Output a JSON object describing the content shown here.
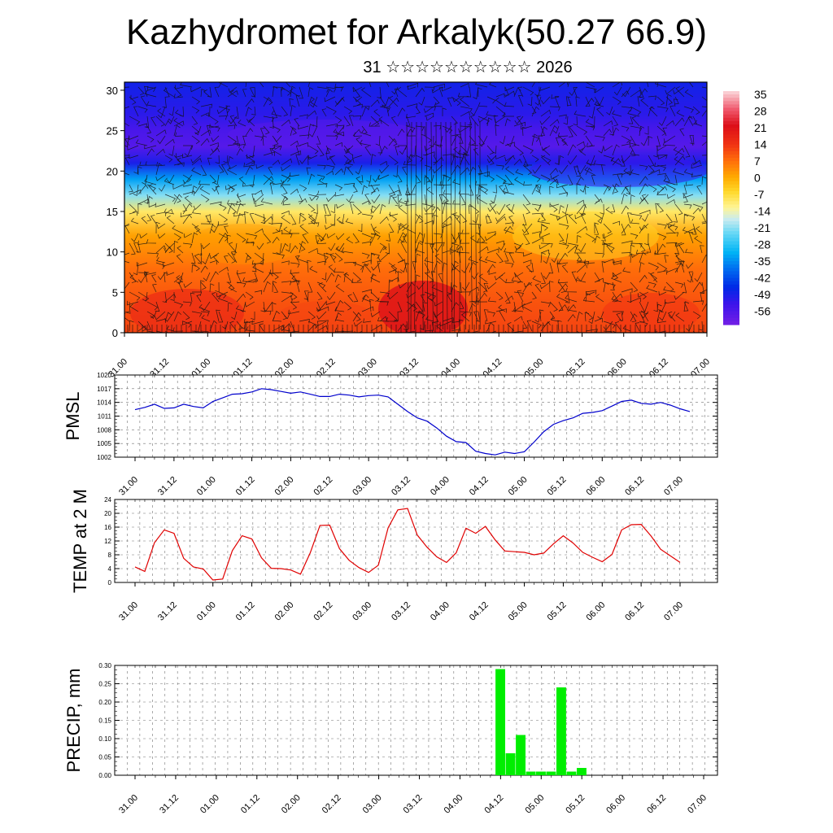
{
  "header": {
    "title": "Kazhydromet for Arkalyk(50.27 66.9)",
    "subtitle": "31 ☆☆☆☆☆☆☆☆☆☆ 2026"
  },
  "colors": {
    "pmsl_line": "#0000cc",
    "temp_line": "#e00000",
    "precip_bar": "#00ee00",
    "wind_barb": "#111111",
    "grid": "#000000"
  },
  "chart_data": [
    {
      "id": "cross_section",
      "type": "heatmap",
      "title": "",
      "xlabel": "",
      "ylabel": "",
      "x_ticks": [
        "31.00",
        "31.12",
        "01.00",
        "01.12",
        "02.00",
        "02.12",
        "03.00",
        "03.12",
        "04.00",
        "04.12",
        "05.00",
        "05.12",
        "06.00",
        "06.12",
        "07.00"
      ],
      "y_ticks": [
        0,
        5,
        10,
        15,
        20,
        25,
        30
      ],
      "ylim": [
        0,
        31
      ],
      "colorbar_labels": [
        "35",
        "28",
        "21",
        "14",
        "7",
        "0",
        "-7",
        "-14",
        "-21",
        "-28",
        "-35",
        "-42",
        "-49",
        "-56"
      ],
      "colorbar_range": [
        -60,
        38
      ],
      "overlay": "wind barbs",
      "temperature_profile_levels": [
        0,
        4,
        8,
        12,
        15,
        17,
        19,
        21,
        23,
        25,
        27,
        31
      ],
      "temperature_profile_values": [
        14,
        12,
        9,
        3,
        -8,
        -20,
        -32,
        -48,
        -56,
        -54,
        -50,
        -47
      ]
    },
    {
      "id": "pmsl",
      "type": "line",
      "ylabel": "PMSL",
      "ylim": [
        1002,
        1020
      ],
      "y_ticks": [
        "1002",
        "1005",
        "1008",
        "1011",
        "1014",
        "1017",
        "1020"
      ],
      "x_ticks": [
        "31.00",
        "31.12",
        "01.00",
        "01.12",
        "02.00",
        "02.12",
        "03.00",
        "03.12",
        "04.00",
        "04.12",
        "05.00",
        "05.12",
        "06.00",
        "06.12",
        "07.00"
      ],
      "series": [
        {
          "values": [
            1012.4,
            1012.9,
            1013.6,
            1012.7,
            1012.8,
            1013.6,
            1013.1,
            1012.8,
            1014.2,
            1015.0,
            1015.8,
            1015.9,
            1016.3,
            1017.0,
            1016.8,
            1016.4,
            1016.0,
            1016.3,
            1015.8,
            1015.3,
            1015.3,
            1015.8,
            1015.6,
            1015.2,
            1015.5,
            1015.6,
            1015.2,
            1013.6,
            1012.0,
            1010.6,
            1009.9,
            1008.4,
            1006.6,
            1005.4,
            1005.2,
            1003.3,
            1002.8,
            1002.5,
            1003.1,
            1002.8,
            1003.2,
            1005.3,
            1007.6,
            1009.2,
            1010.0,
            1010.6,
            1011.6,
            1011.8,
            1012.2,
            1013.2,
            1014.2,
            1014.5,
            1013.8,
            1013.6,
            1014.0,
            1013.4,
            1012.6,
            1012.0
          ]
        }
      ]
    },
    {
      "id": "temp2m",
      "type": "line",
      "ylabel": "TEMP at 2 M",
      "ylim": [
        0,
        24
      ],
      "y_ticks": [
        "0",
        "4",
        "8",
        "12",
        "16",
        "20",
        "24"
      ],
      "x_ticks": [
        "31.00",
        "31.12",
        "01.00",
        "01.12",
        "02.00",
        "02.12",
        "03.00",
        "03.12",
        "04.00",
        "04.12",
        "05.00",
        "05.12",
        "06.00",
        "06.12",
        "07.00"
      ],
      "series": [
        {
          "values": [
            4.5,
            3.2,
            11.5,
            15.2,
            14.2,
            7.0,
            4.5,
            3.9,
            0.7,
            1.0,
            9.2,
            13.5,
            12.6,
            7.1,
            4.1,
            4.0,
            3.6,
            2.4,
            8.6,
            16.5,
            16.6,
            9.8,
            6.4,
            4.3,
            2.9,
            5.0,
            15.8,
            21.0,
            21.4,
            13.7,
            10.2,
            7.4,
            5.8,
            8.6,
            15.7,
            14.2,
            16.2,
            12.3,
            9.1,
            8.9,
            8.7,
            8.0,
            8.5,
            11.2,
            13.5,
            11.4,
            8.7,
            7.3,
            6.0,
            8.1,
            15.2,
            16.7,
            16.8,
            13.5,
            9.6,
            7.7,
            5.8
          ]
        }
      ]
    },
    {
      "id": "precip",
      "type": "bar",
      "ylabel": "PRECIP, mm",
      "ylim": [
        0,
        0.3
      ],
      "y_ticks": [
        "0.00",
        "0.05",
        "0.10",
        "0.15",
        "0.20",
        "0.25",
        "0.30"
      ],
      "x_ticks": [
        "31.00",
        "31.12",
        "01.00",
        "01.12",
        "02.00",
        "02.12",
        "03.00",
        "03.12",
        "04.00",
        "04.12",
        "05.00",
        "05.12",
        "06.00",
        "06.12",
        "07.00"
      ],
      "series": [
        {
          "values": [
            0,
            0,
            0,
            0,
            0,
            0,
            0,
            0,
            0,
            0,
            0,
            0,
            0,
            0,
            0,
            0,
            0,
            0,
            0,
            0,
            0,
            0,
            0,
            0,
            0,
            0,
            0,
            0,
            0,
            0,
            0,
            0,
            0,
            0,
            0,
            0,
            0.29,
            0.06,
            0.11,
            0.01,
            0.01,
            0.01,
            0.24,
            0.01,
            0.02,
            0,
            0,
            0,
            0,
            0,
            0,
            0,
            0,
            0,
            0,
            0,
            0,
            0,
            0
          ]
        }
      ]
    }
  ]
}
